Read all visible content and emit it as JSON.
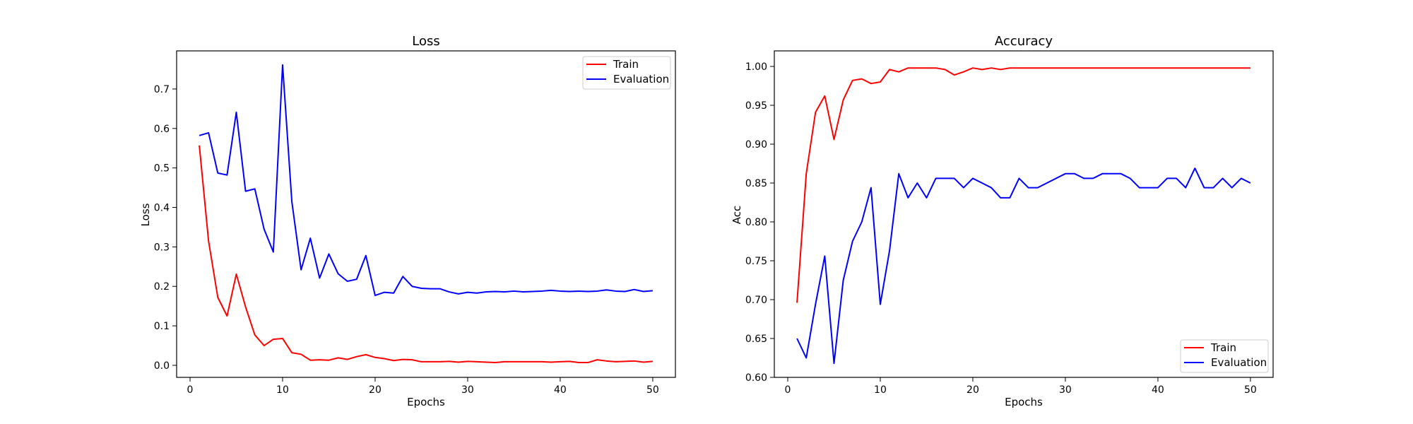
{
  "chart_data": [
    {
      "type": "line",
      "title": "Loss",
      "xlabel": "Epochs",
      "ylabel": "Loss",
      "xlim": [
        -1.45,
        52.45
      ],
      "ylim": [
        -0.0305,
        0.7965
      ],
      "xticks": [
        0,
        10,
        20,
        30,
        40,
        50
      ],
      "yticks": [
        0.0,
        0.1,
        0.2,
        0.3,
        0.4,
        0.5,
        0.6,
        0.7
      ],
      "ytick_decimals": 1,
      "grid": false,
      "legend_position": "top-right",
      "x": [
        1,
        2,
        3,
        4,
        5,
        6,
        7,
        8,
        9,
        10,
        11,
        12,
        13,
        14,
        15,
        16,
        17,
        18,
        19,
        20,
        21,
        22,
        23,
        24,
        25,
        26,
        27,
        28,
        29,
        30,
        31,
        32,
        33,
        34,
        35,
        36,
        37,
        38,
        39,
        40,
        41,
        42,
        43,
        44,
        45,
        46,
        47,
        48,
        49,
        50
      ],
      "series": [
        {
          "name": "Train",
          "color": "#ff0000",
          "values": [
            0.557,
            0.315,
            0.172,
            0.125,
            0.231,
            0.148,
            0.077,
            0.05,
            0.066,
            0.068,
            0.032,
            0.028,
            0.013,
            0.014,
            0.013,
            0.019,
            0.015,
            0.022,
            0.027,
            0.02,
            0.017,
            0.012,
            0.015,
            0.014,
            0.009,
            0.009,
            0.009,
            0.01,
            0.008,
            0.01,
            0.009,
            0.008,
            0.007,
            0.009,
            0.009,
            0.009,
            0.009,
            0.009,
            0.008,
            0.009,
            0.01,
            0.007,
            0.007,
            0.014,
            0.011,
            0.009,
            0.01,
            0.011,
            0.008,
            0.01
          ]
        },
        {
          "name": "Evaluation",
          "color": "#0000ff",
          "values": [
            0.582,
            0.589,
            0.487,
            0.482,
            0.641,
            0.441,
            0.447,
            0.345,
            0.287,
            0.761,
            0.415,
            0.242,
            0.322,
            0.221,
            0.282,
            0.232,
            0.213,
            0.218,
            0.278,
            0.177,
            0.185,
            0.183,
            0.225,
            0.2,
            0.195,
            0.194,
            0.194,
            0.186,
            0.181,
            0.185,
            0.183,
            0.186,
            0.187,
            0.186,
            0.188,
            0.186,
            0.187,
            0.188,
            0.19,
            0.188,
            0.187,
            0.188,
            0.187,
            0.188,
            0.191,
            0.188,
            0.187,
            0.192,
            0.187,
            0.189
          ]
        }
      ]
    },
    {
      "type": "line",
      "title": "Accuracy",
      "xlabel": "Epochs",
      "ylabel": "Acc",
      "xlim": [
        -1.45,
        52.45
      ],
      "ylim": [
        0.6,
        1.02
      ],
      "xticks": [
        0,
        10,
        20,
        30,
        40,
        50
      ],
      "yticks": [
        0.6,
        0.65,
        0.7,
        0.75,
        0.8,
        0.85,
        0.9,
        0.95,
        1.0
      ],
      "ytick_decimals": 2,
      "grid": false,
      "legend_position": "bottom-right",
      "x": [
        1,
        2,
        3,
        4,
        5,
        6,
        7,
        8,
        9,
        10,
        11,
        12,
        13,
        14,
        15,
        16,
        17,
        18,
        19,
        20,
        21,
        22,
        23,
        24,
        25,
        26,
        27,
        28,
        29,
        30,
        31,
        32,
        33,
        34,
        35,
        36,
        37,
        38,
        39,
        40,
        41,
        42,
        43,
        44,
        45,
        46,
        47,
        48,
        49,
        50
      ],
      "series": [
        {
          "name": "Train",
          "color": "#ff0000",
          "values": [
            0.696,
            0.862,
            0.941,
            0.962,
            0.906,
            0.957,
            0.982,
            0.984,
            0.978,
            0.98,
            0.996,
            0.993,
            0.998,
            0.998,
            0.998,
            0.998,
            0.996,
            0.989,
            0.993,
            0.998,
            0.996,
            0.998,
            0.996,
            0.998,
            0.998,
            0.998,
            0.998,
            0.998,
            0.998,
            0.998,
            0.998,
            0.998,
            0.998,
            0.998,
            0.998,
            0.998,
            0.998,
            0.998,
            0.998,
            0.998,
            0.998,
            0.998,
            0.998,
            0.998,
            0.998,
            0.998,
            0.998,
            0.998,
            0.998,
            0.998
          ]
        },
        {
          "name": "Evaluation",
          "color": "#0000ff",
          "values": [
            0.65,
            0.625,
            0.694,
            0.756,
            0.618,
            0.725,
            0.775,
            0.8,
            0.844,
            0.694,
            0.763,
            0.862,
            0.831,
            0.85,
            0.831,
            0.856,
            0.856,
            0.856,
            0.844,
            0.856,
            0.85,
            0.844,
            0.831,
            0.831,
            0.856,
            0.844,
            0.844,
            0.85,
            0.856,
            0.862,
            0.862,
            0.856,
            0.856,
            0.862,
            0.862,
            0.862,
            0.856,
            0.844,
            0.844,
            0.844,
            0.856,
            0.856,
            0.844,
            0.869,
            0.844,
            0.844,
            0.856,
            0.844,
            0.856,
            0.85
          ]
        }
      ]
    }
  ]
}
